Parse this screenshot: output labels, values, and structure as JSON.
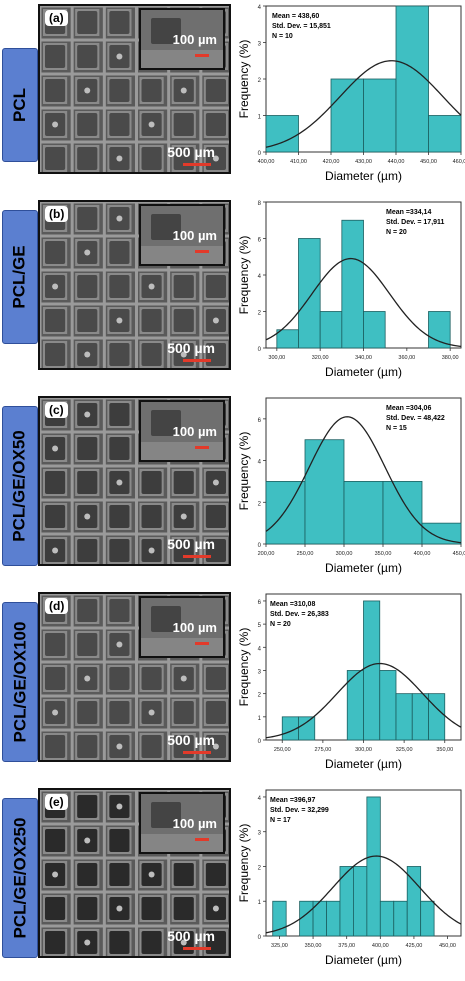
{
  "palette": {
    "bar": "#3fbfc2",
    "bar_edge": "#1b5f60",
    "curve": "#222222",
    "label_bg": "#5b7fd0"
  },
  "scalebars": {
    "inset": "100 µm",
    "main": "500 µm"
  },
  "panels": [
    {
      "letter": "(a)",
      "sample": "PCL",
      "chart_data": {
        "type": "bar",
        "xlabel": "Diameter (µm)",
        "ylabel": "Frequency (%)",
        "xlim": [
          400,
          460
        ],
        "ylim": [
          0,
          4
        ],
        "xticks": [
          "400,00",
          "410,00",
          "420,00",
          "430,00",
          "440,00",
          "450,00",
          "460,00"
        ],
        "yticks": [
          "0",
          "1",
          "2",
          "3",
          "4"
        ],
        "bins": [
          [
            405,
            1
          ],
          [
            425,
            2
          ],
          [
            435,
            2
          ],
          [
            445,
            4
          ],
          [
            455,
            1
          ]
        ],
        "binwidth": 10,
        "stats": {
          "mean": "Mean = 438,60",
          "sd": "Std. Dev. = 15,851",
          "n": "N = 10"
        },
        "mu": 438.6,
        "sigma": 15.851,
        "peak": 2.5
      }
    },
    {
      "letter": "(b)",
      "sample": "PCL/GE",
      "chart_data": {
        "type": "bar",
        "xlabel": "Diameter (µm)",
        "ylabel": "Frequency (%)",
        "xlim": [
          295,
          385
        ],
        "ylim": [
          0,
          8
        ],
        "xticks": [
          "300,00",
          "320,00",
          "340,00",
          "360,00",
          "380,00"
        ],
        "yticks": [
          "0",
          "2",
          "4",
          "6",
          "8"
        ],
        "bins": [
          [
            305,
            1
          ],
          [
            315,
            6
          ],
          [
            325,
            2
          ],
          [
            335,
            7
          ],
          [
            345,
            2
          ],
          [
            375,
            2
          ]
        ],
        "binwidth": 10,
        "stats": {
          "mean": "Mean =334,14",
          "sd": "Std. Dev. = 17,911",
          "n": "N = 20"
        },
        "mu": 334.14,
        "sigma": 17.911,
        "peak": 4.9
      }
    },
    {
      "letter": "(c)",
      "sample": "PCL/GE/OX50",
      "chart_data": {
        "type": "bar",
        "xlabel": "Diameter (µm)",
        "ylabel": "Frequency (%)",
        "xlim": [
          200,
          450
        ],
        "ylim": [
          0,
          7
        ],
        "xticks": [
          "200,00",
          "250,00",
          "300,00",
          "350,00",
          "400,00",
          "450,00"
        ],
        "yticks": [
          "0",
          "2",
          "4",
          "6"
        ],
        "bins": [
          [
            225,
            3
          ],
          [
            275,
            5
          ],
          [
            325,
            3
          ],
          [
            375,
            3
          ],
          [
            425,
            1
          ]
        ],
        "binwidth": 50,
        "stats": {
          "mean": "Mean =304,06",
          "sd": "Std. Dev. = 48,422",
          "n": "N = 15"
        },
        "mu": 304.06,
        "sigma": 48.422,
        "peak": 6.1
      }
    },
    {
      "letter": "(d)",
      "sample": "PCL/GE/OX100",
      "chart_data": {
        "type": "bar",
        "xlabel": "Diameter (µm)",
        "ylabel": "Frequency (%)",
        "xlim": [
          240,
          360
        ],
        "ylim": [
          0,
          6.3
        ],
        "xticks": [
          "250,00",
          "275,00",
          "300,00",
          "325,00",
          "350,00"
        ],
        "yticks": [
          "0",
          "1",
          "2",
          "3",
          "4",
          "5",
          "6"
        ],
        "bins": [
          [
            255,
            1
          ],
          [
            265,
            1
          ],
          [
            295,
            3
          ],
          [
            305,
            6
          ],
          [
            315,
            3
          ],
          [
            325,
            2
          ],
          [
            335,
            2
          ],
          [
            345,
            2
          ]
        ],
        "binwidth": 10,
        "stats": {
          "mean": "Mean =310,08",
          "sd": "Std. Dev. = 26,383",
          "n": "N = 20"
        },
        "mu": 310.08,
        "sigma": 26.383,
        "peak": 3.3
      }
    },
    {
      "letter": "(e)",
      "sample": "PCL/GE/OX250",
      "chart_data": {
        "type": "bar",
        "xlabel": "Diameter (µm)",
        "ylabel": "Frequency (%)",
        "xlim": [
          315,
          460
        ],
        "ylim": [
          0,
          4.2
        ],
        "xticks": [
          "325,00",
          "350,00",
          "375,00",
          "400,00",
          "425,00",
          "450,00"
        ],
        "yticks": [
          "0",
          "1",
          "2",
          "3",
          "4"
        ],
        "bins": [
          [
            325,
            1
          ],
          [
            345,
            1
          ],
          [
            355,
            1
          ],
          [
            365,
            1
          ],
          [
            375,
            2
          ],
          [
            385,
            2
          ],
          [
            395,
            4
          ],
          [
            405,
            1
          ],
          [
            415,
            1
          ],
          [
            425,
            2
          ],
          [
            435,
            1
          ]
        ],
        "binwidth": 10,
        "stats": {
          "mean": "Mean =396,97",
          "sd": "Std. Dev. = 32,299",
          "n": "N = 17"
        },
        "mu": 396.97,
        "sigma": 32.299,
        "peak": 2.3
      }
    }
  ]
}
